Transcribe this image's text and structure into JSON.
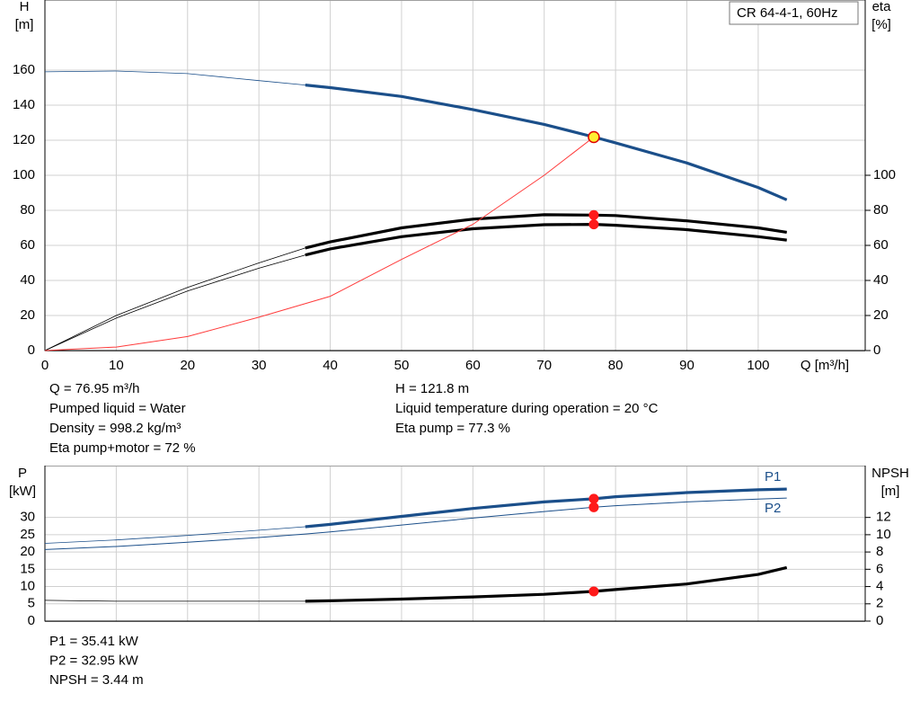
{
  "chart_data": [
    {
      "type": "line",
      "legend": "CR 64-4-1, 60Hz",
      "legend_corner": "upper right",
      "x_label": "Q [m³/h]",
      "y_label": [
        "H",
        "[m]"
      ],
      "y2_label": [
        "eta",
        "[%]"
      ],
      "x": [
        0,
        10,
        20,
        30,
        36.5,
        40,
        50,
        60,
        70,
        77,
        80,
        90,
        100,
        104
      ],
      "xlim": [
        0,
        115
      ],
      "xticks": [
        0,
        10,
        20,
        30,
        40,
        50,
        60,
        70,
        80,
        90,
        100
      ],
      "ylim": [
        0,
        200
      ],
      "yticks": [
        0,
        20,
        40,
        60,
        80,
        100,
        120,
        140,
        160
      ],
      "y2lim": [
        0,
        200
      ],
      "y2ticks": [
        0,
        20,
        40,
        60,
        80,
        100
      ],
      "grid": true,
      "bold_from": 36.5,
      "series": [
        {
          "color": "#1b4f8a",
          "values": [
            159,
            159.5,
            158,
            154,
            151.5,
            150,
            145,
            137.5,
            129,
            121.8,
            118.5,
            107,
            93,
            86
          ]
        },
        {
          "color": "#000000",
          "axis": "y2",
          "values": [
            0,
            20,
            36,
            50,
            58.5,
            62,
            70,
            75,
            77.5,
            77.3,
            77,
            74,
            70,
            67.5
          ]
        },
        {
          "color": "#000000",
          "axis": "y2",
          "values": [
            0,
            18.5,
            34,
            47,
            54.5,
            58,
            65,
            69.5,
            71.8,
            72,
            71.5,
            69,
            65,
            63
          ]
        },
        {
          "color": "#ff3b3b",
          "thin": true,
          "x": [
            0,
            10,
            20,
            30,
            40,
            50,
            60,
            70,
            76.95
          ],
          "values": [
            0,
            2,
            8,
            19,
            31,
            52,
            72,
            100,
            121.8
          ]
        }
      ],
      "point": {
        "x": 76.95,
        "y": 121.8,
        "y2": [
          77.3,
          72
        ]
      },
      "info_left": [
        "Q = 76.95 m³/h",
        "Pumped liquid = Water",
        "Density = 998.2 kg/m³",
        "Eta pump+motor = 72 %"
      ],
      "info_right": [
        "H = 121.8 m",
        "Liquid temperature during operation = 20 °C",
        "Eta pump = 77.3 %"
      ]
    },
    {
      "type": "line",
      "y_label": [
        "P",
        "[kW]"
      ],
      "y2_label": [
        "NPSH",
        "[m]"
      ],
      "x": [
        0,
        10,
        20,
        30,
        36.5,
        40,
        50,
        60,
        70,
        77,
        80,
        90,
        100,
        104
      ],
      "xlim": [
        0,
        115
      ],
      "xgrid": [
        0,
        10,
        20,
        30,
        40,
        50,
        60,
        70,
        80,
        90,
        100
      ],
      "ylim": [
        0,
        45
      ],
      "yticks": [
        0,
        5,
        10,
        15,
        20,
        25,
        30
      ],
      "y2lim": [
        0,
        18
      ],
      "y2ticks": [
        0,
        2,
        4,
        6,
        8,
        10,
        12
      ],
      "grid": true,
      "bold_from": 36.5,
      "series": [
        {
          "name": "P1",
          "color": "#1b4f8a",
          "values": [
            22.5,
            23.5,
            24.8,
            26.3,
            27.3,
            28,
            30.3,
            32.6,
            34.5,
            35.41,
            36,
            37.2,
            38,
            38.2
          ]
        },
        {
          "name": "P2",
          "color": "#1b4f8a",
          "thin": true,
          "values": [
            20.7,
            21.6,
            22.8,
            24.2,
            25.2,
            25.8,
            27.8,
            29.8,
            31.7,
            32.95,
            33.4,
            34.5,
            35.3,
            35.6
          ]
        },
        {
          "color": "#000000",
          "axis": "y2",
          "values": [
            2.4,
            2.3,
            2.3,
            2.3,
            2.3,
            2.35,
            2.55,
            2.8,
            3.1,
            3.44,
            3.65,
            4.3,
            5.4,
            6.2
          ]
        }
      ],
      "point": {
        "x": 76.95,
        "y": [
          35.41,
          32.95
        ],
        "y2": 3.44
      },
      "info_left": [
        "P1 = 35.41 kW",
        "P2 = 32.95 kW",
        "NPSH = 3.44 m"
      ]
    }
  ]
}
